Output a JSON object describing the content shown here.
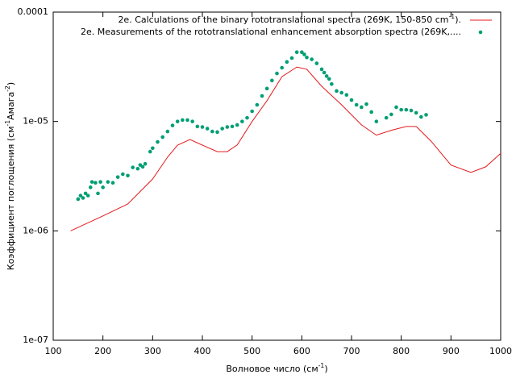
{
  "chart_data": {
    "type": "line_scatter",
    "xlabel": [
      "Волновое число (см",
      "-1",
      ")"
    ],
    "ylabel": [
      "Коэффициент поглощения (см",
      "-1",
      "Амага",
      "-2",
      ")"
    ],
    "xlim": [
      100,
      1000
    ],
    "xticks": [
      100,
      200,
      300,
      400,
      500,
      600,
      700,
      800,
      900,
      1000
    ],
    "ylim": [
      1e-07,
      0.0001
    ],
    "log_y": true,
    "yticks": [
      {
        "value": 1e-07,
        "label": "1e-07"
      },
      {
        "value": 1e-06,
        "label": "1e-06"
      },
      {
        "value": 1e-05,
        "label": "1e-05"
      },
      {
        "value": 0.0001,
        "label": "0.0001"
      }
    ],
    "legend": "top-right",
    "series": [
      {
        "name": [
          "2e. Calculations of the binary rototranslational spectra  (269K, 150-850 cm",
          "-1",
          ")."
        ],
        "kind": "line",
        "color": "#e41a1c",
        "x": [
          135,
          200,
          250,
          300,
          330,
          350,
          375,
          400,
          430,
          450,
          470,
          500,
          530,
          560,
          590,
          610,
          640,
          680,
          720,
          750,
          780,
          810,
          830,
          860,
          900,
          940,
          970,
          1000
        ],
        "values": [
          1e-06,
          1.37e-06,
          1.76e-06,
          2.98e-06,
          4.72e-06,
          6.08e-06,
          6.85e-06,
          6.08e-06,
          5.3e-06,
          5.3e-06,
          6.1e-06,
          1e-05,
          1.55e-05,
          2.57e-05,
          3.15e-05,
          3e-05,
          2.1e-05,
          1.42e-05,
          9.3e-06,
          7.5e-06,
          8.3e-06,
          9e-06,
          9e-06,
          6.6e-06,
          4e-06,
          3.42e-06,
          3.85e-06,
          5.1e-06
        ]
      },
      {
        "name": [
          "2e. Measurements of the rototranslational enhancement absorption spectra (269K,...."
        ],
        "kind": "points",
        "color": "#009e73",
        "x": [
          150,
          155,
          160,
          165,
          170,
          175,
          178,
          185,
          190,
          195,
          200,
          210,
          220,
          230,
          240,
          250,
          260,
          270,
          275,
          280,
          285,
          295,
          300,
          310,
          320,
          330,
          340,
          350,
          360,
          370,
          380,
          390,
          400,
          410,
          420,
          430,
          440,
          450,
          460,
          470,
          480,
          490,
          500,
          510,
          520,
          530,
          540,
          550,
          560,
          570,
          580,
          590,
          600,
          605,
          610,
          620,
          630,
          640,
          645,
          650,
          655,
          660,
          670,
          680,
          690,
          700,
          710,
          720,
          730,
          740,
          750,
          770,
          780,
          790,
          800,
          810,
          820,
          830,
          840,
          850
        ],
        "values": [
          1.95e-06,
          2.1e-06,
          2e-06,
          2.2e-06,
          2.1e-06,
          2.5e-06,
          2.8e-06,
          2.75e-06,
          2.2e-06,
          2.8e-06,
          2.5e-06,
          2.8e-06,
          2.75e-06,
          3.1e-06,
          3.3e-06,
          3.2e-06,
          3.8e-06,
          3.7e-06,
          4e-06,
          3.85e-06,
          4.1e-06,
          5.3e-06,
          5.7e-06,
          6.5e-06,
          7.2e-06,
          8.1e-06,
          9.2e-06,
          1e-05,
          1.03e-05,
          1.03e-05,
          1e-05,
          9e-06,
          8.9e-06,
          8.6e-06,
          8.1e-06,
          8e-06,
          8.6e-06,
          8.9e-06,
          9e-06,
          9.3e-06,
          1e-05,
          1.08e-05,
          1.24e-05,
          1.42e-05,
          1.71e-05,
          2e-05,
          2.37e-05,
          2.75e-05,
          3.1e-05,
          3.5e-05,
          3.8e-05,
          4.3e-05,
          4.3e-05,
          4.1e-05,
          3.85e-05,
          3.7e-05,
          3.4e-05,
          3e-05,
          2.8e-05,
          2.6e-05,
          2.45e-05,
          2.2e-05,
          1.9e-05,
          1.83e-05,
          1.75e-05,
          1.57e-05,
          1.42e-05,
          1.35e-05,
          1.44e-05,
          1.22e-05,
          1e-05,
          1.08e-05,
          1.16e-05,
          1.35e-05,
          1.28e-05,
          1.28e-05,
          1.26e-05,
          1.2e-05,
          1.1e-05,
          1.15e-05
        ]
      }
    ]
  }
}
